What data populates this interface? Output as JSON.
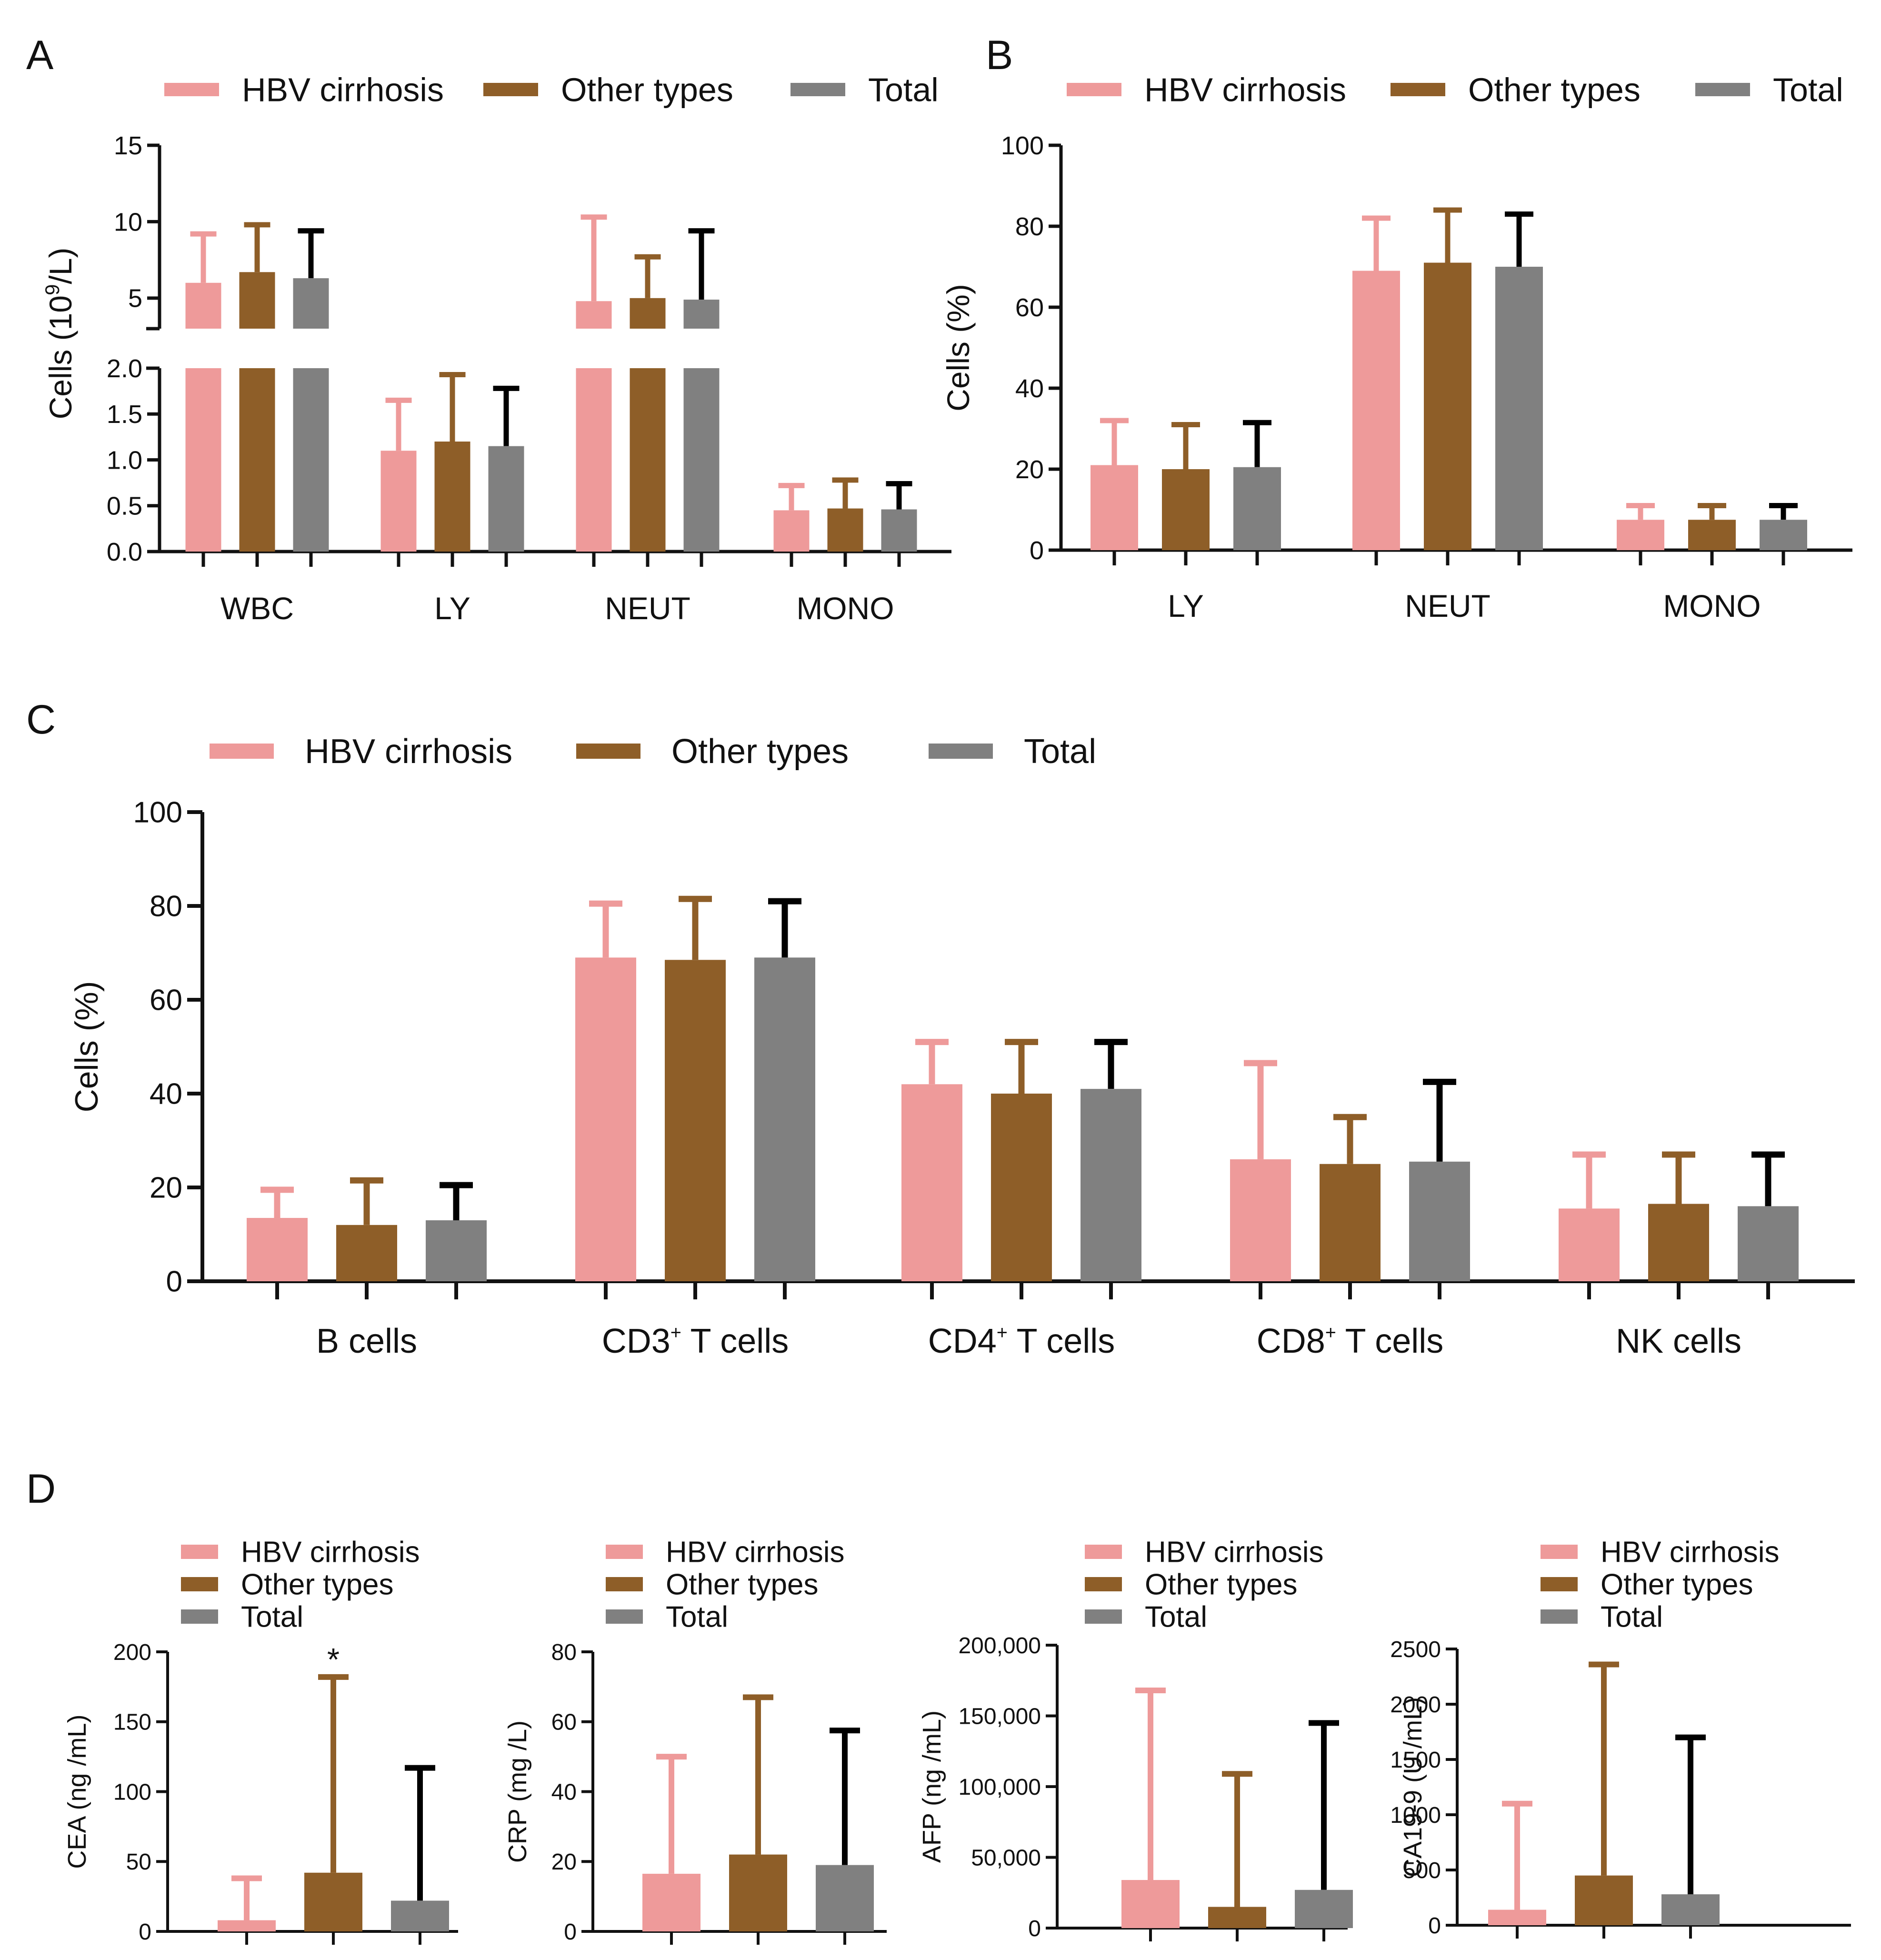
{
  "colors": {
    "hbv": "#ee9a9a",
    "other": "#8e5e28",
    "total": "#808080",
    "axis": "#111111",
    "err_hbv": "#ee9a9a",
    "err_other": "#8e5e28",
    "err_total": "#000000"
  },
  "legend_labels": [
    "HBV cirrhosis",
    "Other types",
    "Total"
  ],
  "chart_data": [
    {
      "id": "A",
      "panel_label": "A",
      "type": "bar",
      "title": "",
      "xlabel": "",
      "ylabel_prefix": "Cells (10",
      "ylabel_sup": "9",
      "ylabel_suffix": "/L)",
      "axis_break": true,
      "ylim_upper": [
        3,
        15
      ],
      "ylim_lower": [
        0,
        2.0
      ],
      "ticks_upper": [
        "15",
        "10",
        "5"
      ],
      "ticks_lower": [
        "2.0",
        "1.5",
        "1.0",
        "0.5",
        "0.0"
      ],
      "categories": [
        "WBC",
        "LY",
        "NEUT",
        "MONO"
      ],
      "series": [
        {
          "name": "HBV cirrhosis",
          "values": [
            6.0,
            1.1,
            4.8,
            0.45
          ],
          "errors": [
            9.2,
            1.65,
            10.3,
            0.72
          ]
        },
        {
          "name": "Other types",
          "values": [
            6.7,
            1.2,
            5.0,
            0.47
          ],
          "errors": [
            9.8,
            1.93,
            7.7,
            0.78
          ]
        },
        {
          "name": "Total",
          "values": [
            6.3,
            1.15,
            4.9,
            0.46
          ],
          "errors": [
            9.4,
            1.78,
            9.4,
            0.74
          ]
        }
      ]
    },
    {
      "id": "B",
      "panel_label": "B",
      "type": "bar",
      "title": "",
      "xlabel": "",
      "ylabel": "Cells (%)",
      "ylim": [
        0,
        100
      ],
      "ticks": [
        "100",
        "80",
        "60",
        "40",
        "20",
        "0"
      ],
      "categories": [
        "LY",
        "NEUT",
        "MONO"
      ],
      "series": [
        {
          "name": "HBV cirrhosis",
          "values": [
            21,
            69,
            7.5
          ],
          "errors": [
            32,
            82,
            11
          ]
        },
        {
          "name": "Other types",
          "values": [
            20,
            71,
            7.5
          ],
          "errors": [
            31,
            84,
            11
          ]
        },
        {
          "name": "Total",
          "values": [
            20.5,
            70,
            7.5
          ],
          "errors": [
            31.5,
            83,
            11
          ]
        }
      ]
    },
    {
      "id": "C",
      "panel_label": "C",
      "type": "bar",
      "title": "",
      "xlabel": "",
      "ylabel": "Cells (%)",
      "ylim": [
        0,
        100
      ],
      "ticks": [
        "100",
        "80",
        "60",
        "40",
        "20",
        "0"
      ],
      "categories": [
        "B cells",
        "CD3+ T cells",
        "CD4+ T cells",
        "CD8+ T cells",
        "NK cells"
      ],
      "category_parts": [
        [
          "B cells",
          "",
          ""
        ],
        [
          "CD3",
          "+",
          " T cells"
        ],
        [
          "CD4",
          "+",
          " T cells"
        ],
        [
          "CD8",
          "+",
          " T cells"
        ],
        [
          "NK cells",
          "",
          ""
        ]
      ],
      "series": [
        {
          "name": "HBV cirrhosis",
          "values": [
            13.5,
            69,
            42,
            26,
            15.5
          ],
          "errors": [
            19.5,
            80.5,
            51,
            46.5,
            27
          ]
        },
        {
          "name": "Other types",
          "values": [
            12,
            68.5,
            40,
            25,
            16.5
          ],
          "errors": [
            21.5,
            81.5,
            51,
            35,
            27
          ]
        },
        {
          "name": "Total",
          "values": [
            13,
            69,
            41,
            25.5,
            16
          ],
          "errors": [
            20.5,
            81,
            51,
            42.5,
            27
          ]
        }
      ]
    },
    {
      "id": "D1",
      "panel_label": "D",
      "type": "bar",
      "title": "",
      "xlabel": "",
      "ylabel": "CEA (ng /mL)",
      "ylim": [
        0,
        200
      ],
      "ticks": [
        "200",
        "150",
        "100",
        "50",
        "0"
      ],
      "categories": [
        ""
      ],
      "annotation": "*",
      "series": [
        {
          "name": "HBV cirrhosis",
          "values": [
            8
          ],
          "errors": [
            38
          ]
        },
        {
          "name": "Other types",
          "values": [
            42
          ],
          "errors": [
            182
          ]
        },
        {
          "name": "Total",
          "values": [
            22
          ],
          "errors": [
            117
          ]
        }
      ]
    },
    {
      "id": "D2",
      "panel_label": "",
      "type": "bar",
      "title": "",
      "xlabel": "",
      "ylabel": "CRP (mg /L)",
      "ylim": [
        0,
        80
      ],
      "ticks": [
        "80",
        "60",
        "40",
        "20",
        "0"
      ],
      "categories": [
        ""
      ],
      "series": [
        {
          "name": "HBV cirrhosis",
          "values": [
            16.5
          ],
          "errors": [
            50
          ]
        },
        {
          "name": "Other types",
          "values": [
            22
          ],
          "errors": [
            67
          ]
        },
        {
          "name": "Total",
          "values": [
            19
          ],
          "errors": [
            57.5
          ]
        }
      ]
    },
    {
      "id": "D3",
      "panel_label": "",
      "type": "bar",
      "title": "",
      "xlabel": "",
      "ylabel": "AFP (ng /mL)",
      "ylim": [
        0,
        200000
      ],
      "ticks": [
        "200,000",
        "150,000",
        "100,000",
        "50,000",
        "0"
      ],
      "categories": [
        ""
      ],
      "series": [
        {
          "name": "HBV cirrhosis",
          "values": [
            34000
          ],
          "errors": [
            168000
          ]
        },
        {
          "name": "Other types",
          "values": [
            15000
          ],
          "errors": [
            109000
          ]
        },
        {
          "name": "Total",
          "values": [
            27000
          ],
          "errors": [
            145000
          ]
        }
      ]
    },
    {
      "id": "D4",
      "panel_label": "",
      "type": "bar",
      "title": "",
      "xlabel": "",
      "ylabel": "CA19-9 (U /mL)",
      "ylim": [
        0,
        2500
      ],
      "ticks": [
        "2500",
        "2000",
        "1500",
        "1000",
        "500",
        "0"
      ],
      "categories": [
        ""
      ],
      "series": [
        {
          "name": "HBV cirrhosis",
          "values": [
            140
          ],
          "errors": [
            1100
          ]
        },
        {
          "name": "Other types",
          "values": [
            450
          ],
          "errors": [
            2360
          ]
        },
        {
          "name": "Total",
          "values": [
            280
          ],
          "errors": [
            1700
          ]
        }
      ]
    }
  ]
}
